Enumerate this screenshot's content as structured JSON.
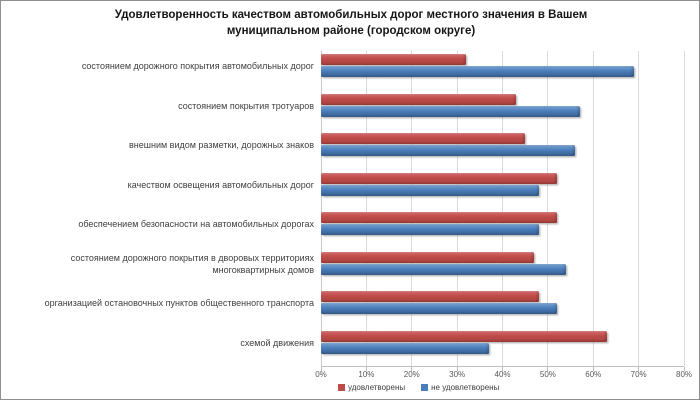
{
  "title": "Удовлетворенность качеством автомобильных дорог местного значения в Вашем муниципальном районе (городском округе)",
  "chart_data": {
    "type": "bar",
    "orientation": "horizontal",
    "title": "Удовлетворенность качеством автомобильных дорог местного значения в Вашем муниципальном районе (городском округе)",
    "categories": [
      "состоянием дорожного покрытия автомобильных дорог",
      "состоянием покрытия тротуаров",
      "внешним видом разметки, дорожных знаков",
      "качеством освещения автомобильных дорог",
      "обеспечением безопасности на автомобильных дорогах",
      "состоянием дорожного покрытия в дворовых территориях многоквартирных домов",
      "организацией остановочных пунктов общественного транспорта",
      "схемой движения"
    ],
    "series": [
      {
        "key": "satisfied",
        "name": "удовлетворены",
        "color": "#BE4B48",
        "values": [
          32,
          43,
          45,
          52,
          52,
          47,
          48,
          63
        ]
      },
      {
        "key": "unsatisfied",
        "name": "не удовлетворены",
        "color": "#4A7EBB",
        "values": [
          69,
          57,
          56,
          48,
          48,
          54,
          52,
          37
        ]
      }
    ],
    "xlim": [
      0,
      80
    ],
    "x_ticks": [
      "0%",
      "10%",
      "20%",
      "30%",
      "40%",
      "50%",
      "60%",
      "70%",
      "80%"
    ],
    "grid": true,
    "legend_position": "bottom-left"
  }
}
